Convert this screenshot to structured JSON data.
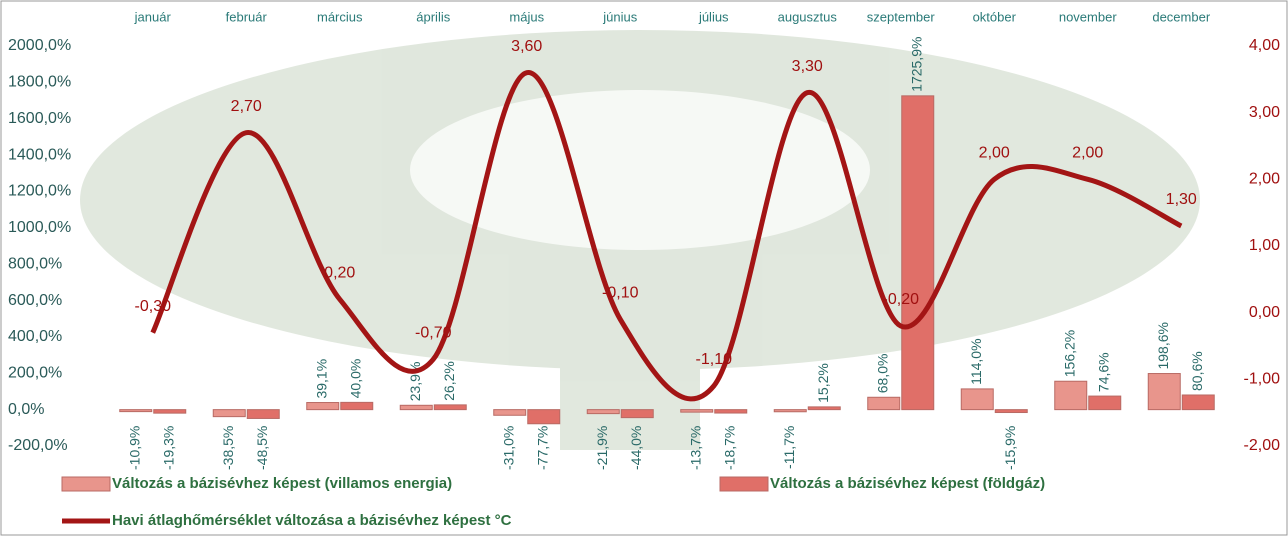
{
  "chart_data": {
    "type": "bar",
    "categories": [
      "január",
      "február",
      "március",
      "április",
      "május",
      "június",
      "július",
      "augusztus",
      "szeptember",
      "október",
      "november",
      "december"
    ],
    "series": [
      {
        "name": "Változás a bázisévhez képest (villamos energia)",
        "color": "#e8958c",
        "values": [
          -10.9,
          -38.5,
          39.1,
          23.9,
          -31.0,
          -21.9,
          -13.7,
          -11.7,
          68.0,
          114.0,
          156.2,
          198.6
        ],
        "value_labels": [
          "-10,9%",
          "-38,5%",
          "39,1%",
          "23,9%",
          "-31,0%",
          "-21,9%",
          "-13,7%",
          "-11,7%",
          "68,0%",
          "114,0%",
          "156,2%",
          "198,6%"
        ]
      },
      {
        "name": "Változás a bázisévhez képest (földgáz)",
        "color": "#e06f68",
        "values": [
          -19.3,
          -48.5,
          40.0,
          26.2,
          -77.7,
          -44.0,
          -18.7,
          15.2,
          1725.9,
          -15.9,
          74.6,
          80.6
        ],
        "value_labels": [
          "-19,3%",
          "-48,5%",
          "40,0%",
          "26,2%",
          "-77,7%",
          "-44,0%",
          "-18,7%",
          "15,2%",
          "1725,9%",
          "-15,9%",
          "74,6%",
          "80,6%"
        ]
      },
      {
        "name": "Havi átlaghőmérséklet változása a bázisévhez képest °C",
        "color": "#a31515",
        "type": "line",
        "axis": "y2",
        "values": [
          -0.3,
          2.7,
          0.2,
          -0.7,
          3.6,
          -0.1,
          -1.1,
          3.3,
          -0.2,
          2.0,
          2.0,
          1.3
        ],
        "value_labels": [
          "-0,30",
          "2,70",
          "0,20",
          "-0,70",
          "3,60",
          "-0,10",
          "-1,10",
          "3,30",
          "-0,20",
          "2,00",
          "2,00",
          "1,30"
        ]
      }
    ],
    "ylim": [
      -200,
      2000
    ],
    "yticks": [
      {
        "value": -200,
        "label": "-200,0%"
      },
      {
        "value": 0,
        "label": "0,0%"
      },
      {
        "value": 200,
        "label": "200,0%"
      },
      {
        "value": 400,
        "label": "400,0%"
      },
      {
        "value": 600,
        "label": "600,0%"
      },
      {
        "value": 800,
        "label": "800,0%"
      },
      {
        "value": 1000,
        "label": "1000,0%"
      },
      {
        "value": 1200,
        "label": "1200,0%"
      },
      {
        "value": 1400,
        "label": "1400,0%"
      },
      {
        "value": 1600,
        "label": "1600,0%"
      },
      {
        "value": 1800,
        "label": "1800,0%"
      },
      {
        "value": 2000,
        "label": "2000,0%"
      }
    ],
    "y2lim": [
      -2,
      4
    ],
    "y2ticks": [
      {
        "value": -2,
        "label": "-2,00"
      },
      {
        "value": -1,
        "label": "-1,00"
      },
      {
        "value": 0,
        "label": "0,00"
      },
      {
        "value": 1,
        "label": "1,00"
      },
      {
        "value": 2,
        "label": "2,00"
      },
      {
        "value": 3,
        "label": "3,00"
      },
      {
        "value": 4,
        "label": "4,00"
      }
    ],
    "legend": "bottom"
  }
}
